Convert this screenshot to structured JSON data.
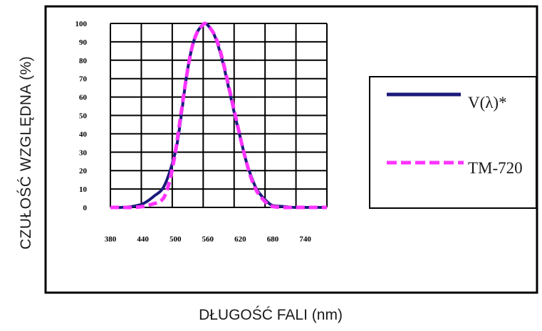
{
  "chart_data": {
    "type": "line",
    "xlabel": "DŁUGOŚĆ FALI (nm)",
    "ylabel": "CZUŁOŚĆ WZGLĘDNA  (%)",
    "x_ticks": [
      "380",
      "440",
      "500",
      "560",
      "620",
      "680",
      "740"
    ],
    "y_ticks": [
      "0",
      "10",
      "20",
      "30",
      "40",
      "50",
      "60",
      "70",
      "80",
      "90",
      "100"
    ],
    "xlim": [
      380,
      780
    ],
    "ylim": [
      0,
      100
    ],
    "grid": true,
    "legend_position": "right",
    "series": [
      {
        "name": "V(λ)*",
        "color": "#1a1a7a",
        "style": "solid",
        "x": [
          380,
          400,
          420,
          440,
          460,
          480,
          500,
          510,
          520,
          530,
          540,
          550,
          555,
          560,
          570,
          580,
          590,
          600,
          610,
          620,
          630,
          640,
          650,
          660,
          670,
          680,
          700,
          720,
          740,
          780
        ],
        "y": [
          0,
          0,
          0.5,
          2,
          6,
          12,
          30,
          48,
          70,
          86,
          95,
          99,
          100,
          99,
          95,
          87,
          76,
          63,
          50,
          38,
          26,
          17,
          10,
          6,
          3,
          1,
          0.5,
          0,
          0,
          0
        ]
      },
      {
        "name": "TM-720",
        "color": "#ff33ff",
        "style": "dashed",
        "x": [
          380,
          400,
          420,
          440,
          460,
          470,
          480,
          490,
          500,
          510,
          520,
          530,
          540,
          550,
          555,
          560,
          570,
          580,
          590,
          600,
          610,
          620,
          630,
          640,
          650,
          660,
          670,
          680,
          700,
          720,
          740,
          780
        ],
        "y": [
          0,
          0,
          0,
          0.5,
          2,
          3,
          6,
          15,
          30,
          50,
          70,
          86,
          95,
          99,
          100,
          99,
          95,
          88,
          77,
          64,
          51,
          38,
          26,
          16,
          9,
          5,
          2,
          0.5,
          0,
          0,
          0,
          0
        ]
      }
    ]
  }
}
